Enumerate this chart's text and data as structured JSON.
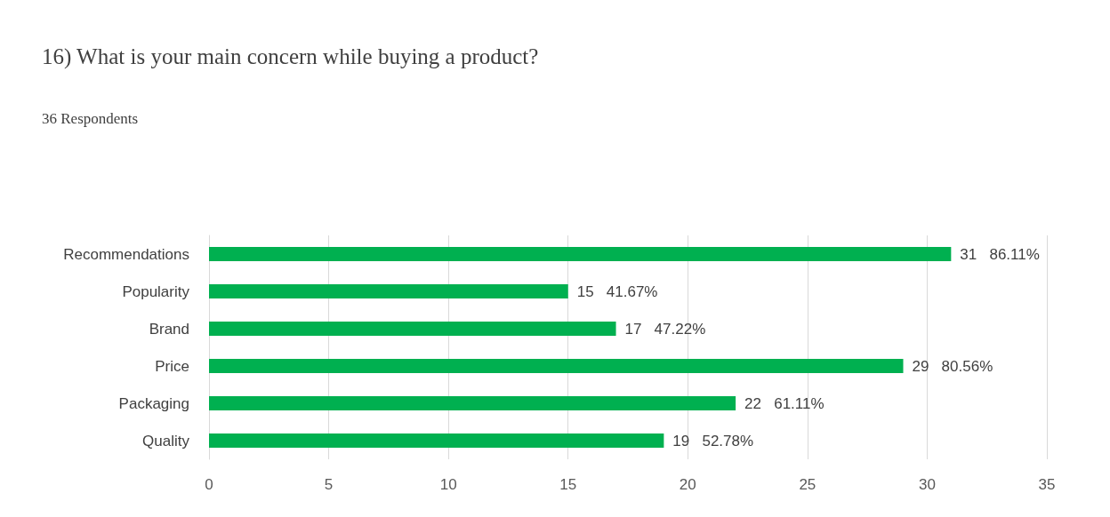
{
  "chart_data": {
    "type": "bar",
    "orientation": "horizontal",
    "title": "16) What is your main concern while buying a product?",
    "subtitle": "36 Respondents",
    "categories": [
      "Recommendations",
      "Popularity",
      "Brand",
      "Price",
      "Packaging",
      "Quality"
    ],
    "values": [
      31,
      15,
      17,
      29,
      22,
      19
    ],
    "value_labels": [
      "31   86.11%",
      "15   41.67%",
      "17   47.22%",
      "29   80.56%",
      "22   61.11%",
      "19   52.78%"
    ],
    "color": "#00b050",
    "xlim": [
      0,
      35
    ],
    "xticks": [
      0,
      5,
      10,
      15,
      20,
      25,
      30,
      35
    ],
    "grid": "x"
  }
}
